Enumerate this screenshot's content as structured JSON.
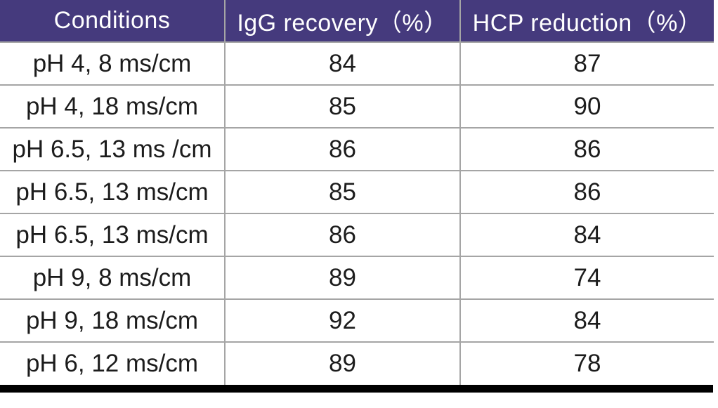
{
  "chart_data": {
    "type": "table",
    "columns": [
      "Conditions",
      "IgG recovery（%）",
      "HCP reduction（%）"
    ],
    "rows": [
      [
        "pH 4, 8 ms/cm",
        84,
        87
      ],
      [
        "pH 4, 18 ms/cm",
        85,
        90
      ],
      [
        "pH 6.5, 13 ms /cm",
        86,
        86
      ],
      [
        "pH 6.5, 13 ms/cm",
        85,
        86
      ],
      [
        "pH 6.5, 13 ms/cm",
        86,
        84
      ],
      [
        "pH 9, 8 ms/cm",
        89,
        74
      ],
      [
        "pH 9, 18 ms/cm",
        92,
        84
      ],
      [
        "pH 6, 12 ms/cm",
        89,
        78
      ]
    ],
    "layout": {
      "grid": "on",
      "header_position": "top",
      "bottom_border": "thick-black"
    }
  },
  "colors": {
    "header_bg": "#453a7d",
    "header_text": "#ffffff",
    "grid": "#a5a5a5",
    "cell_text": "#1c1c1c",
    "bottom_bar": "#000000",
    "page_bg": "#ffffff"
  }
}
